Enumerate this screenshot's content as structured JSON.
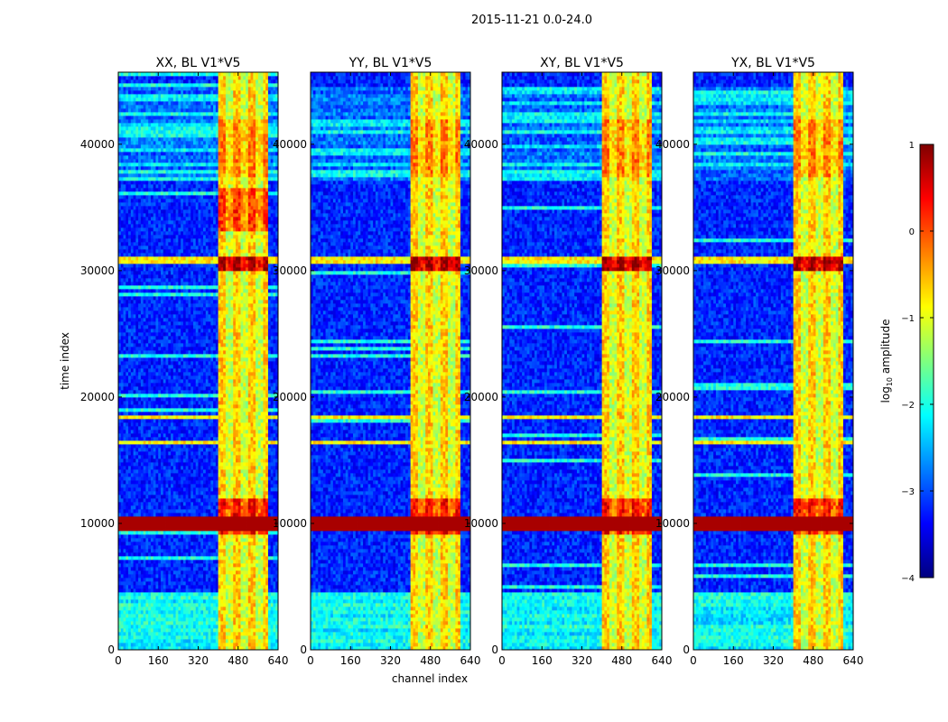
{
  "figure": {
    "suptitle": "2015-11-21 0.0-24.0",
    "xlabel": "channel index",
    "ylabel": "time index"
  },
  "colorbar": {
    "label_main": "log",
    "label_sub": "10",
    "label_rest": " amplitude",
    "range": [
      -4,
      1
    ],
    "ticks": [
      "1",
      "0",
      "−1",
      "−2",
      "−3",
      "−4"
    ],
    "tick_values": [
      1,
      0,
      -1,
      -2,
      -3,
      -4
    ],
    "colors": [
      "#00007f",
      "#0000ff",
      "#007fff",
      "#00ffff",
      "#7fff7f",
      "#ffff00",
      "#ff7f00",
      "#ff0000",
      "#7f0000"
    ]
  },
  "chart_data": {
    "type": "heatmap",
    "colormap": "jet",
    "value_label": "log10 amplitude",
    "value_range": [
      -4,
      1
    ],
    "x_ticks": [
      "0",
      "160",
      "320",
      "480",
      "640"
    ],
    "x_tick_values": [
      0,
      160,
      320,
      480,
      640
    ],
    "y_ticks": [
      "0",
      "10000",
      "20000",
      "30000",
      "40000"
    ],
    "y_tick_values": [
      0,
      10000,
      20000,
      30000,
      40000
    ],
    "xlim": [
      0,
      640
    ],
    "ylim": [
      0,
      45700
    ],
    "panels": [
      {
        "title": "XX, BL V1*V5",
        "show_xlabel": false,
        "y_offset_labels": false
      },
      {
        "title": "YY, BL V1*V5",
        "show_xlabel": true,
        "y_offset_labels": true
      },
      {
        "title": "XY, BL V1*V5",
        "show_xlabel": false,
        "y_offset_labels": true
      },
      {
        "title": "YX, BL V1*V5",
        "show_xlabel": false,
        "y_offset_labels": true
      }
    ],
    "features": {
      "rfi_band_channels": [
        400,
        600
      ],
      "rfi_band_value": -1.0,
      "background_value": -3.2,
      "strong_rows_time": [
        9700,
        9900,
        10100,
        10400,
        16400,
        18500,
        30700,
        31100
      ],
      "saturated_time_range": [
        9500,
        10600
      ],
      "flagged_rows_time": [
        36800,
        36900,
        4700,
        4800
      ]
    }
  }
}
